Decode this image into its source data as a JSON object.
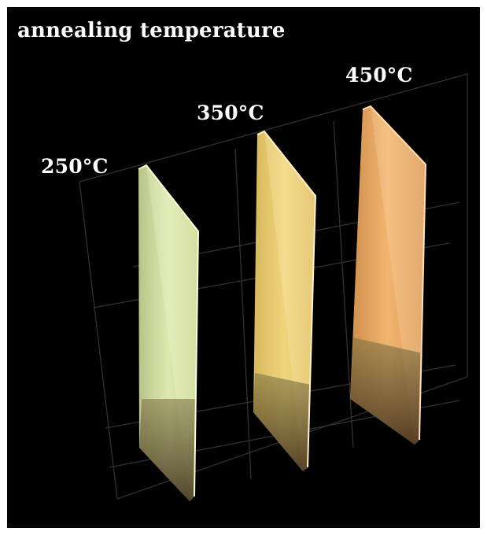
{
  "title": "annealing temperature",
  "samples": [
    {
      "temperature": "250°C",
      "color": "#e2ecae"
    },
    {
      "temperature": "350°C",
      "color": "#efd37a"
    },
    {
      "temperature": "450°C",
      "color": "#f0b36e"
    }
  ]
}
